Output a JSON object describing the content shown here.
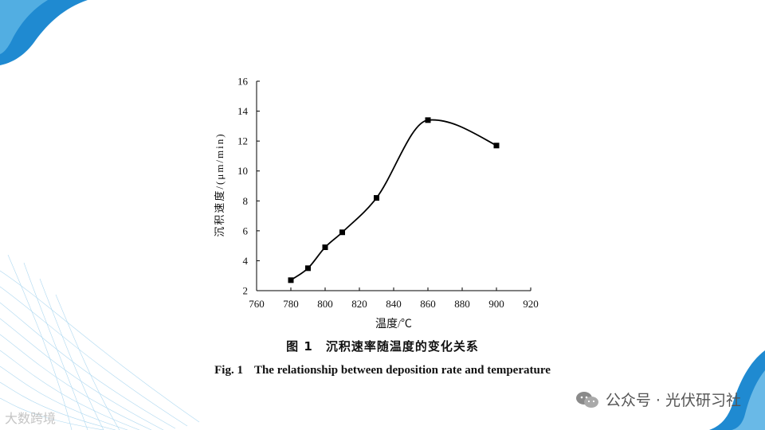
{
  "chart_data": {
    "type": "line",
    "x": [
      780,
      790,
      800,
      810,
      830,
      860,
      900
    ],
    "y": [
      2.7,
      3.5,
      4.9,
      5.9,
      8.2,
      13.4,
      11.7
    ],
    "xlim": [
      760,
      920
    ],
    "ylim": [
      2,
      16
    ],
    "xticks": [
      760,
      780,
      800,
      820,
      840,
      860,
      880,
      900,
      920
    ],
    "yticks": [
      2,
      4,
      6,
      8,
      10,
      12,
      14,
      16
    ],
    "xlabel": "温度/℃",
    "ylabel": "沉积速度/(μm/min)",
    "marker": "square",
    "smooth": true,
    "grid": false,
    "line_color": "#000000"
  },
  "caption": {
    "cn_num": "图 1",
    "cn_text": "沉积速率随温度的变化关系",
    "en_num": "Fig. 1",
    "en_text": "The relationship between deposition rate and temperature"
  },
  "watermark": {
    "text": "公众号 · 光伏研习社",
    "icon": "wechat-icon"
  },
  "logo": {
    "text": "大数跨境"
  },
  "colors": {
    "accent": "#1f8ad1",
    "accent_light": "#7cc4ec"
  }
}
